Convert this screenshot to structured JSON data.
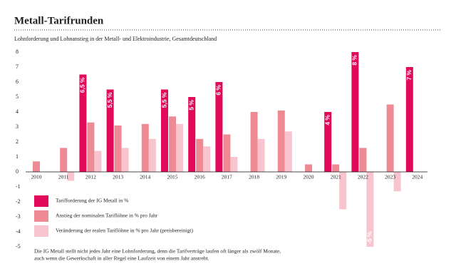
{
  "chart_data": {
    "type": "bar",
    "title": "Metall-Tarifrunden",
    "subtitle": "Lohnforderung und Lohnanstieg in der Metall- und Elektroindustrie, Gesamtdeutschland",
    "note": [
      "Die IG Metall stellt nicht jedes Jahr eine Lohnforderung, denn die Tarifverträge laufen oft länger als zwölf Monate,",
      "auch wenn die Gewerkschaft in aller Regel eine Laufzeit von einem Jahr anstrebt."
    ],
    "categories": [
      "2010",
      "2011",
      "2012",
      "2013",
      "2014",
      "2015",
      "2016",
      "2017",
      "2018",
      "2019",
      "2020",
      "2021",
      "2022",
      "2023",
      "2024"
    ],
    "series": [
      {
        "name": "Tarifforderung der IG Metall in %",
        "color": "#e2085a",
        "values": [
          null,
          null,
          6.5,
          5.5,
          null,
          5.5,
          5,
          6,
          null,
          null,
          null,
          4,
          8,
          null,
          7
        ],
        "value_labels": [
          null,
          null,
          "6,5 %",
          "5,5 %",
          null,
          "5,5 %",
          "5 %",
          "6 %",
          null,
          null,
          null,
          "4 %",
          "8 %",
          null,
          "7 %"
        ]
      },
      {
        "name": "Anstieg der nominalen Tariflöhne in % pro Jahr",
        "color": "#ee8a94",
        "values": [
          0.7,
          1.6,
          3.3,
          3.1,
          3.2,
          3.7,
          2.2,
          2.5,
          4.0,
          4.1,
          0.5,
          0.5,
          1.6,
          4.5,
          null
        ]
      },
      {
        "name": "Veränderung der realen Tariflöhne in % pro Jahr (preisbereinigt)",
        "color": "#f8c5cf",
        "values": [
          null,
          -0.6,
          1.4,
          1.6,
          2.2,
          3.2,
          1.7,
          1.0,
          2.2,
          2.7,
          null,
          -2.5,
          -5,
          -1.3,
          null
        ],
        "value_labels": [
          null,
          null,
          null,
          null,
          null,
          null,
          null,
          null,
          null,
          null,
          null,
          null,
          "-5 %",
          null,
          null
        ]
      }
    ],
    "ylim": [
      -5,
      8
    ],
    "yticks": [
      -5,
      -4,
      -3,
      -2,
      -1,
      0,
      1,
      2,
      3,
      4,
      5,
      6,
      7,
      8
    ]
  }
}
